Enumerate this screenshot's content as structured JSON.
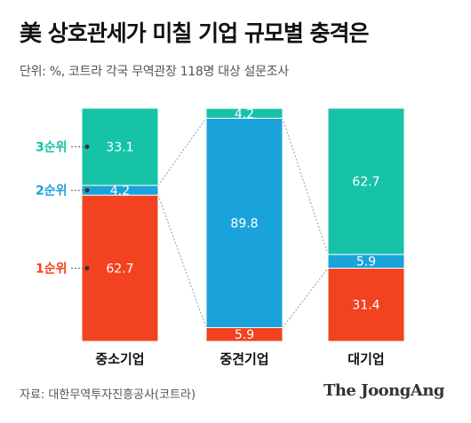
{
  "title": "美 상호관세가 미칠 기업 규모별 충격은",
  "subtitle": "단위: %, 코트라 각국 무역관장 118명 대상 설문조사",
  "source": "자료: 대한무역투자진흥공사(코트라)",
  "brand": "The JoongAng",
  "colors": {
    "rank1": "#f2421f",
    "rank2": "#1aa3db",
    "rank3": "#16c3a6",
    "connector": "#9a9a9a"
  },
  "chart_data": {
    "type": "bar",
    "stacked": true,
    "unit": "%",
    "categories": [
      "중소기업",
      "중견기업",
      "대기업"
    ],
    "series": [
      {
        "name": "1순위",
        "values": [
          62.7,
          5.9,
          31.4
        ]
      },
      {
        "name": "2순위",
        "values": [
          4.2,
          89.8,
          5.9
        ]
      },
      {
        "name": "3순위",
        "values": [
          33.1,
          4.2,
          62.7
        ]
      }
    ],
    "legend": "left, labels attached to first bar",
    "ylim": [
      0,
      100
    ]
  }
}
